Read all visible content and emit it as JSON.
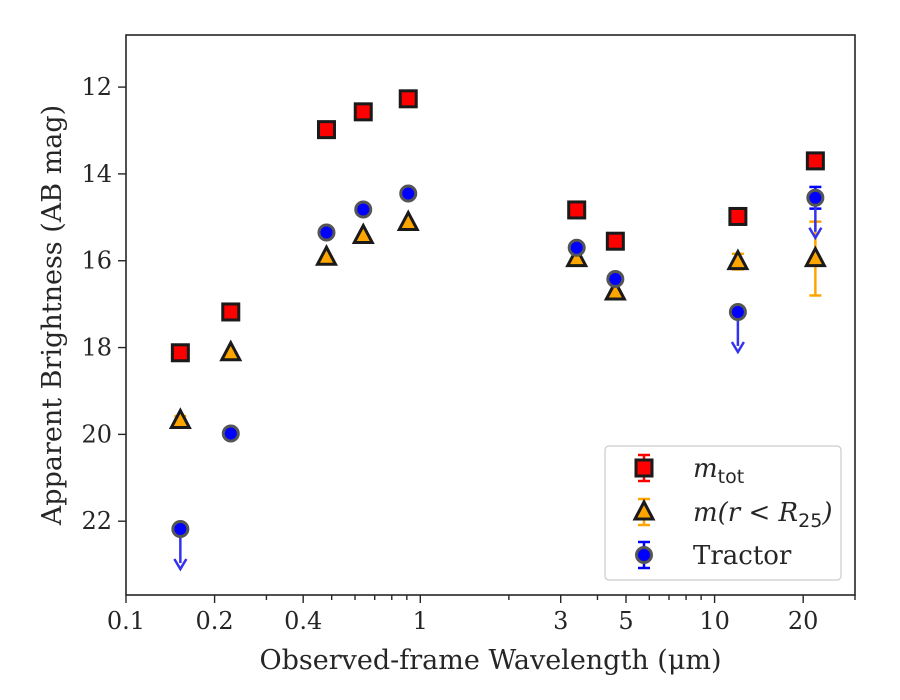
{
  "chart_data": {
    "type": "scatter",
    "xlabel": "Observed-frame Wavelength (μm)",
    "ylabel": "Apparent Brightness (AB mag)",
    "xscale": "log",
    "xlim": [
      0.1,
      30
    ],
    "ylim": [
      23.7,
      10.8
    ],
    "y_inverted": true,
    "x_ticks": [
      {
        "value": 0.1,
        "label": "0.1"
      },
      {
        "value": 0.2,
        "label": "0.2"
      },
      {
        "value": 0.4,
        "label": "0.4"
      },
      {
        "value": 1,
        "label": "1"
      },
      {
        "value": 3,
        "label": "3"
      },
      {
        "value": 5,
        "label": "5"
      },
      {
        "value": 10,
        "label": "10"
      },
      {
        "value": 20,
        "label": "20"
      }
    ],
    "y_ticks": [
      12,
      14,
      16,
      18,
      20,
      22
    ],
    "grid": false,
    "legend": {
      "placement": "lower-right",
      "entries": [
        {
          "series": "m_tot",
          "text_main": "m",
          "text_sub": "tot",
          "text_suffix": ""
        },
        {
          "series": "m_r25",
          "text_main": "m(r < R",
          "text_sub": "25",
          "text_suffix": ")"
        },
        {
          "series": "tractor",
          "text_main": "Tractor",
          "text_sub": "",
          "text_suffix": ""
        }
      ]
    },
    "series": [
      {
        "name": "m_tot",
        "marker": "square",
        "color": "#ff0000",
        "edge": "#1a1a1a",
        "points": [
          {
            "x": 0.153,
            "y": 18.12
          },
          {
            "x": 0.227,
            "y": 17.18
          },
          {
            "x": 0.48,
            "y": 12.98
          },
          {
            "x": 0.64,
            "y": 12.57
          },
          {
            "x": 0.91,
            "y": 12.27
          },
          {
            "x": 3.4,
            "y": 14.83
          },
          {
            "x": 4.6,
            "y": 15.55
          },
          {
            "x": 12.0,
            "y": 14.98
          },
          {
            "x": 22.0,
            "y": 13.7
          }
        ]
      },
      {
        "name": "m_r25",
        "marker": "triangle",
        "color": "#ffa500",
        "edge": "#1a1a1a",
        "points": [
          {
            "x": 0.153,
            "y": 19.68,
            "err": 0.1
          },
          {
            "x": 0.227,
            "y": 18.12
          },
          {
            "x": 0.48,
            "y": 15.92
          },
          {
            "x": 0.64,
            "y": 15.42
          },
          {
            "x": 0.91,
            "y": 15.12
          },
          {
            "x": 3.4,
            "y": 15.95
          },
          {
            "x": 4.6,
            "y": 16.72
          },
          {
            "x": 12.0,
            "y": 16.02,
            "err": 0.18
          },
          {
            "x": 22.0,
            "y": 15.95,
            "err": 0.85
          }
        ]
      },
      {
        "name": "tractor",
        "marker": "circle",
        "color": "#0000ff",
        "edge": "#555555",
        "points": [
          {
            "x": 0.153,
            "y": 22.18,
            "upper_limit": true
          },
          {
            "x": 0.227,
            "y": 19.98
          },
          {
            "x": 0.48,
            "y": 15.35
          },
          {
            "x": 0.64,
            "y": 14.82
          },
          {
            "x": 0.91,
            "y": 14.45
          },
          {
            "x": 3.4,
            "y": 15.7
          },
          {
            "x": 4.6,
            "y": 16.42
          },
          {
            "x": 12.0,
            "y": 17.18,
            "upper_limit": true
          },
          {
            "x": 22.0,
            "y": 14.55,
            "upper_limit": true,
            "err": 0.25
          }
        ]
      }
    ]
  }
}
